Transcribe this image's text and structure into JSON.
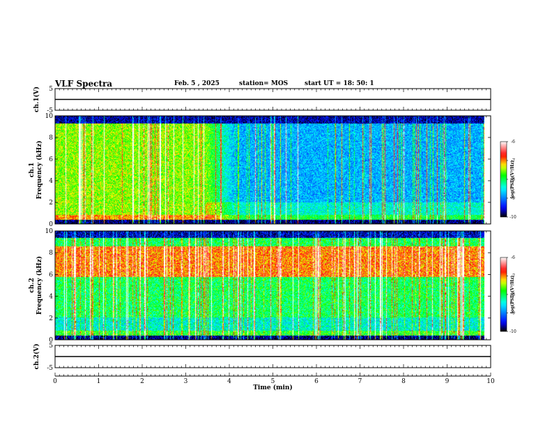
{
  "header": {
    "title": "VLF Spectra",
    "date": "Feb. 5  , 2025",
    "station": "station= MOS",
    "start": "start  UT  =    18: 50: 1"
  },
  "chart_data": [
    {
      "type": "line",
      "ylabel": "ch.1(V)",
      "ylim": [
        -5,
        5
      ],
      "yticks": [
        "5",
        "-5"
      ],
      "xlim": [
        0,
        10
      ],
      "series": [
        {
          "x": [
            0,
            10
          ],
          "y": [
            0,
            0
          ]
        }
      ]
    },
    {
      "type": "heatmap",
      "ylabel_lines": [
        "ch.1",
        "Frequency (kHz)"
      ],
      "ylim": [
        0,
        10
      ],
      "yticks": [
        "0",
        "2",
        "4",
        "6",
        "8",
        "10"
      ],
      "xlim": [
        0,
        10
      ],
      "data_end_x": 9.85,
      "colorbar": {
        "label": "log(PSD)(V²/Hz)",
        "range": [
          -10,
          -6
        ],
        "ticks": [
          "-6",
          "-7",
          "-8",
          "-9",
          "-10"
        ]
      }
    },
    {
      "type": "heatmap",
      "ylabel_lines": [
        "ch.2",
        "Frequency (kHz)"
      ],
      "ylim": [
        0,
        10
      ],
      "yticks": [
        "0",
        "2",
        "4",
        "6",
        "8",
        "10"
      ],
      "xlim": [
        0,
        10
      ],
      "data_end_x": 9.85,
      "colorbar": {
        "label": "log(PSD)(V²/Hz)",
        "range": [
          -10,
          -6
        ],
        "ticks": [
          "-6",
          "-7",
          "-8",
          "-9",
          "-10"
        ]
      }
    },
    {
      "type": "line",
      "ylabel": "ch.2(V)",
      "ylim": [
        -5,
        5
      ],
      "yticks": [
        "5",
        "-5"
      ],
      "xlim": [
        0,
        10
      ],
      "xlabel": "Time  (min)",
      "xticks": [
        "0",
        "1",
        "2",
        "3",
        "4",
        "5",
        "6",
        "7",
        "8",
        "9",
        "10"
      ],
      "series": [
        {
          "x": [
            0,
            10
          ],
          "y": [
            0,
            0
          ]
        }
      ]
    }
  ],
  "colors": {
    "colormap": [
      "#000000",
      "#0000ff",
      "#00ffff",
      "#00ff00",
      "#ffff00",
      "#ff0000",
      "#ffffff"
    ]
  }
}
